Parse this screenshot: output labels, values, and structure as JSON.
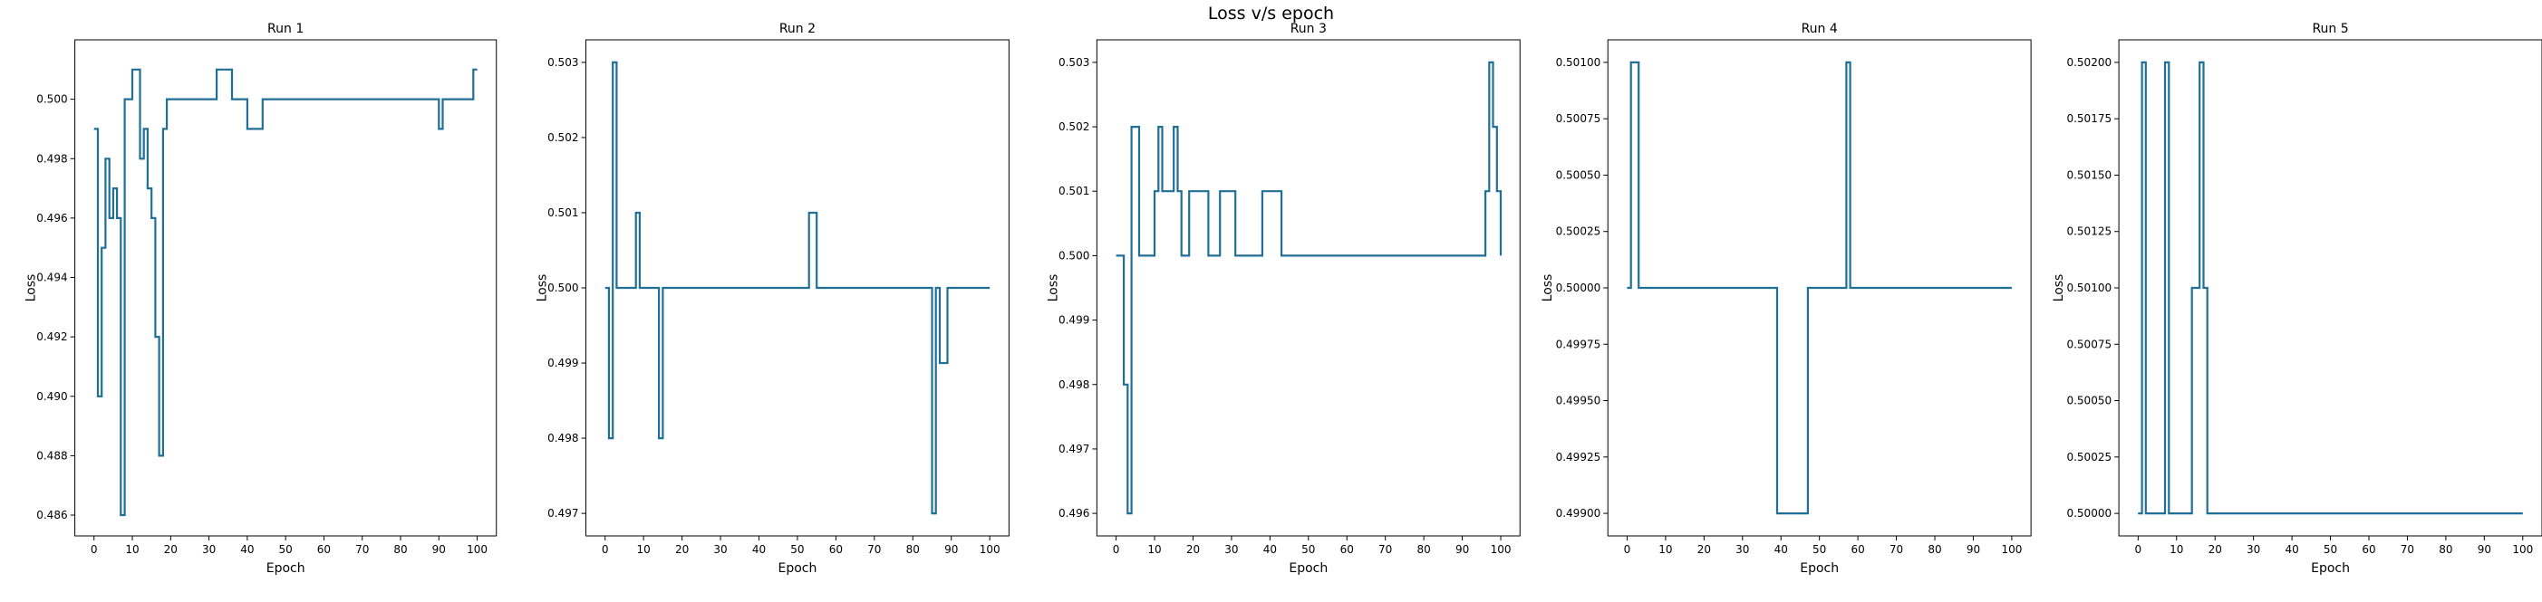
{
  "suptitle": "Loss v/s epoch",
  "colors": {
    "line": "#1f6f96",
    "axis": "#000000"
  },
  "chart_data": [
    {
      "type": "line",
      "title": "Run 1",
      "xlabel": "Epoch",
      "ylabel": "Loss",
      "xlim": [
        -5,
        105
      ],
      "ylim": [
        0.4853,
        0.502
      ],
      "xticks": [
        0,
        10,
        20,
        30,
        40,
        50,
        60,
        70,
        80,
        90,
        100
      ],
      "yticks": [
        0.486,
        0.488,
        0.49,
        0.492,
        0.494,
        0.496,
        0.498,
        0.5
      ],
      "ytick_labels": [
        "0.486",
        "0.488",
        "0.490",
        "0.492",
        "0.494",
        "0.496",
        "0.498",
        "0.500"
      ],
      "grid": false,
      "series": [
        {
          "x": [
            0,
            1,
            2,
            3,
            4,
            5,
            6,
            7,
            8,
            9,
            10,
            11,
            12,
            13,
            14,
            15,
            16,
            17,
            18,
            19,
            20,
            25,
            30,
            31,
            32,
            33,
            34,
            35,
            36,
            37,
            38,
            39,
            40,
            41,
            42,
            43,
            44,
            45,
            50,
            60,
            70,
            80,
            89,
            90,
            91,
            95,
            98,
            99,
            100
          ],
          "y": [
            0.499,
            0.49,
            0.495,
            0.498,
            0.496,
            0.497,
            0.496,
            0.486,
            0.5,
            0.5,
            0.501,
            0.501,
            0.498,
            0.499,
            0.497,
            0.496,
            0.492,
            0.488,
            0.499,
            0.5,
            0.5,
            0.5,
            0.5,
            0.5,
            0.501,
            0.501,
            0.501,
            0.501,
            0.5,
            0.5,
            0.5,
            0.5,
            0.499,
            0.499,
            0.499,
            0.499,
            0.5,
            0.5,
            0.5,
            0.5,
            0.5,
            0.5,
            0.5,
            0.499,
            0.5,
            0.5,
            0.5,
            0.501,
            0.501
          ]
        }
      ]
    },
    {
      "type": "line",
      "title": "Run 2",
      "xlabel": "Epoch",
      "ylabel": "Loss",
      "xlim": [
        -5,
        105
      ],
      "ylim": [
        0.4967,
        0.5033
      ],
      "xticks": [
        0,
        10,
        20,
        30,
        40,
        50,
        60,
        70,
        80,
        90,
        100
      ],
      "yticks": [
        0.497,
        0.498,
        0.499,
        0.5,
        0.501,
        0.502,
        0.503
      ],
      "ytick_labels": [
        "0.497",
        "0.498",
        "0.499",
        "0.500",
        "0.501",
        "0.502",
        "0.503"
      ],
      "grid": false,
      "series": [
        {
          "x": [
            0,
            1,
            2,
            3,
            4,
            5,
            6,
            7,
            8,
            9,
            10,
            11,
            12,
            13,
            14,
            15,
            16,
            20,
            30,
            40,
            50,
            52,
            53,
            54,
            55,
            56,
            60,
            70,
            80,
            83,
            84,
            85,
            86,
            87,
            88,
            89,
            90,
            100
          ],
          "y": [
            0.5,
            0.498,
            0.503,
            0.5,
            0.5,
            0.5,
            0.5,
            0.5,
            0.501,
            0.5,
            0.5,
            0.5,
            0.5,
            0.5,
            0.498,
            0.5,
            0.5,
            0.5,
            0.5,
            0.5,
            0.5,
            0.5,
            0.501,
            0.501,
            0.5,
            0.5,
            0.5,
            0.5,
            0.5,
            0.5,
            0.5,
            0.497,
            0.5,
            0.499,
            0.499,
            0.5,
            0.5,
            0.5
          ]
        }
      ]
    },
    {
      "type": "line",
      "title": "Run 3",
      "xlabel": "Epoch",
      "ylabel": "Loss",
      "xlim": [
        -5,
        105
      ],
      "ylim": [
        0.49565,
        0.50335
      ],
      "xticks": [
        0,
        10,
        20,
        30,
        40,
        50,
        60,
        70,
        80,
        90,
        100
      ],
      "yticks": [
        0.496,
        0.497,
        0.498,
        0.499,
        0.5,
        0.501,
        0.502,
        0.503
      ],
      "ytick_labels": [
        "0.496",
        "0.497",
        "0.498",
        "0.499",
        "0.500",
        "0.501",
        "0.502",
        "0.503"
      ],
      "grid": false,
      "series": [
        {
          "x": [
            0,
            1,
            2,
            3,
            4,
            5,
            6,
            7,
            8,
            9,
            10,
            11,
            12,
            13,
            14,
            15,
            16,
            17,
            18,
            19,
            20,
            21,
            22,
            23,
            24,
            25,
            26,
            27,
            28,
            29,
            30,
            31,
            32,
            33,
            34,
            35,
            36,
            37,
            38,
            39,
            40,
            41,
            42,
            43,
            44,
            45,
            50,
            60,
            70,
            80,
            90,
            95,
            96,
            97,
            98,
            99,
            100
          ],
          "y": [
            0.5,
            0.5,
            0.498,
            0.496,
            0.502,
            0.502,
            0.5,
            0.5,
            0.5,
            0.5,
            0.501,
            0.502,
            0.501,
            0.501,
            0.501,
            0.502,
            0.501,
            0.5,
            0.5,
            0.501,
            0.501,
            0.501,
            0.501,
            0.501,
            0.5,
            0.5,
            0.5,
            0.501,
            0.501,
            0.501,
            0.501,
            0.5,
            0.5,
            0.5,
            0.5,
            0.5,
            0.5,
            0.5,
            0.501,
            0.501,
            0.501,
            0.501,
            0.501,
            0.5,
            0.5,
            0.5,
            0.5,
            0.5,
            0.5,
            0.5,
            0.5,
            0.5,
            0.501,
            0.503,
            0.502,
            0.501,
            0.5
          ]
        }
      ]
    },
    {
      "type": "line",
      "title": "Run 4",
      "xlabel": "Epoch",
      "ylabel": "Loss",
      "xlim": [
        -5,
        105
      ],
      "ylim": [
        0.4989,
        0.5011
      ],
      "xticks": [
        0,
        10,
        20,
        30,
        40,
        50,
        60,
        70,
        80,
        90,
        100
      ],
      "yticks": [
        0.499,
        0.49925,
        0.4995,
        0.49975,
        0.5,
        0.50025,
        0.5005,
        0.50075,
        0.501
      ],
      "ytick_labels": [
        "0.49900",
        "0.49925",
        "0.49950",
        "0.49975",
        "0.50000",
        "0.50025",
        "0.50050",
        "0.50075",
        "0.50100"
      ],
      "grid": false,
      "series": [
        {
          "x": [
            0,
            1,
            2,
            3,
            10,
            20,
            30,
            37,
            38,
            39,
            40,
            45,
            46,
            47,
            50,
            55,
            56,
            57,
            58,
            60,
            70,
            80,
            90,
            100
          ],
          "y": [
            0.5,
            0.501,
            0.501,
            0.5,
            0.5,
            0.5,
            0.5,
            0.5,
            0.5,
            0.499,
            0.499,
            0.499,
            0.499,
            0.5,
            0.5,
            0.5,
            0.5,
            0.501,
            0.5,
            0.5,
            0.5,
            0.5,
            0.5,
            0.5
          ]
        }
      ]
    },
    {
      "type": "line",
      "title": "Run 5",
      "xlabel": "Epoch",
      "ylabel": "Loss",
      "xlim": [
        -5,
        105
      ],
      "ylim": [
        0.4999,
        0.5021
      ],
      "xticks": [
        0,
        10,
        20,
        30,
        40,
        50,
        60,
        70,
        80,
        90,
        100
      ],
      "yticks": [
        0.5,
        0.50025,
        0.5005,
        0.50075,
        0.501,
        0.50125,
        0.5015,
        0.50175,
        0.502
      ],
      "ytick_labels": [
        "0.50000",
        "0.50025",
        "0.50050",
        "0.50075",
        "0.50100",
        "0.50125",
        "0.50150",
        "0.50175",
        "0.50200"
      ],
      "grid": false,
      "series": [
        {
          "x": [
            0,
            1,
            2,
            3,
            4,
            5,
            6,
            7,
            8,
            9,
            10,
            11,
            12,
            13,
            14,
            15,
            16,
            17,
            18,
            19,
            20,
            30,
            40,
            50,
            60,
            70,
            80,
            90,
            100
          ],
          "y": [
            0.5,
            0.502,
            0.5,
            0.5,
            0.5,
            0.5,
            0.5,
            0.502,
            0.5,
            0.5,
            0.5,
            0.5,
            0.5,
            0.5,
            0.501,
            0.501,
            0.502,
            0.501,
            0.5,
            0.5,
            0.5,
            0.5,
            0.5,
            0.5,
            0.5,
            0.5,
            0.5,
            0.5,
            0.5
          ]
        }
      ]
    }
  ]
}
